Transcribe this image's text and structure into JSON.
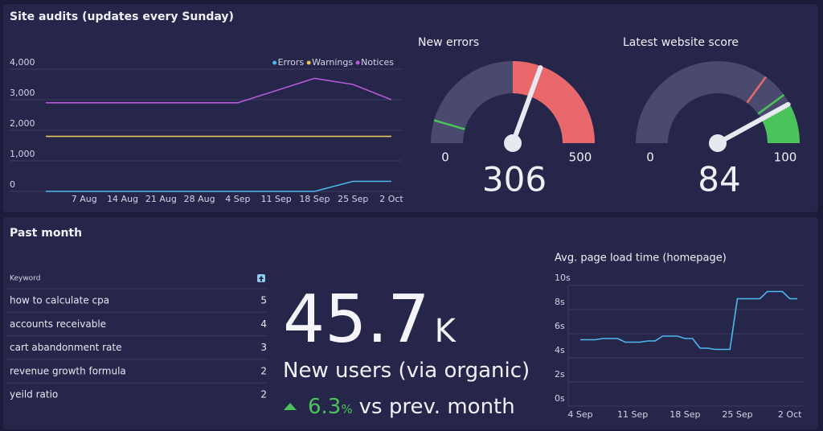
{
  "panels": [
    "Site audits (updates every Sunday)",
    "Past month"
  ],
  "chart_data": [
    {
      "type": "line",
      "categories": [
        null,
        "7 Aug",
        "14 Aug",
        "21 Aug",
        "28 Aug",
        "4 Sep",
        "11 Sep",
        "18 Sep",
        "25 Sep",
        "2 Oct"
      ],
      "series": [
        {
          "name": "Errors",
          "color": "#4db8f0",
          "values": [
            0,
            0,
            0,
            0,
            0,
            0,
            0,
            0,
            330,
            330
          ]
        },
        {
          "name": "Warnings",
          "color": "#e6c45a",
          "values": [
            1800,
            1800,
            1800,
            1800,
            1800,
            1800,
            1800,
            1800,
            1800,
            1800
          ]
        },
        {
          "name": "Notices",
          "color": "#b45ad8",
          "values": [
            2900,
            2900,
            2900,
            2900,
            2900,
            2900,
            3300,
            3700,
            3500,
            3000
          ]
        }
      ],
      "ylim": [
        0,
        4000
      ],
      "yticks": [
        0,
        {
          "value": 1000,
          "label": "1,000"
        },
        {
          "value": 2000,
          "label": "2,000"
        },
        {
          "value": 3000,
          "label": "3,000"
        },
        {
          "value": 4000,
          "label": "4,000"
        }
      ],
      "grid": true,
      "legend": "top-right"
    },
    {
      "type": "gauge",
      "title": "New errors",
      "value": 306,
      "min": 0,
      "max": 500,
      "color": "#4a4a6e",
      "needle_color": "#e8e8f0",
      "bands": [
        {
          "from": 250,
          "to": 500,
          "color": "#e8686c"
        }
      ],
      "markers": [
        {
          "value": 45,
          "color": "#4cc35a"
        }
      ]
    },
    {
      "type": "gauge",
      "title": "Latest website score",
      "value": 84,
      "min": 0,
      "max": 100,
      "color": "#4a4a6e",
      "needle_color": "#e8e8f0",
      "bands": [
        {
          "from": 85,
          "to": 100,
          "color": "#4cc35a"
        }
      ],
      "markers": [
        {
          "value": 70,
          "color": "#e8686c"
        },
        {
          "value": 80,
          "color": "#4cc35a"
        }
      ]
    },
    {
      "type": "line",
      "title": "Avg. page load time (homepage)",
      "categories": [
        "4 Sep",
        null,
        null,
        null,
        null,
        null,
        null,
        "11 Sep",
        null,
        null,
        null,
        null,
        null,
        null,
        "18 Sep",
        null,
        null,
        null,
        null,
        null,
        null,
        "25 Sep",
        null,
        null,
        null,
        null,
        null,
        null,
        "2 Oct",
        null
      ],
      "series": [
        {
          "name": "Avg. page load time",
          "color": "#4db8f0",
          "values": [
            5.5,
            5.5,
            5.5,
            5.6,
            5.6,
            5.6,
            5.3,
            5.3,
            5.3,
            5.4,
            5.4,
            5.8,
            5.8,
            5.8,
            5.6,
            5.6,
            4.8,
            4.8,
            4.7,
            4.7,
            4.7,
            8.9,
            8.9,
            8.9,
            8.9,
            9.5,
            9.5,
            9.5,
            8.9,
            8.9
          ]
        }
      ],
      "ylim": [
        0,
        10
      ],
      "yticks": [
        {
          "value": 0,
          "label": "0s"
        },
        {
          "value": 2,
          "label": "2s"
        },
        {
          "value": 4,
          "label": "4s"
        },
        {
          "value": 6,
          "label": "6s"
        },
        {
          "value": 8,
          "label": "8s"
        },
        {
          "value": 10,
          "label": "10s"
        }
      ],
      "grid": true
    }
  ],
  "keywords": {
    "header": "Keyword",
    "rows": [
      [
        "how to calculate cpa",
        5
      ],
      [
        "accounts receivable",
        4
      ],
      [
        "cart abandonment rate",
        3
      ],
      [
        "revenue growth formula",
        2
      ],
      [
        "yeild ratio",
        2
      ]
    ]
  },
  "kpi": {
    "value": 45.7,
    "suffix": "K",
    "label": "New users (via organic)",
    "change": 6.3,
    "change_unit": "%",
    "change_label": "vs prev. month"
  }
}
